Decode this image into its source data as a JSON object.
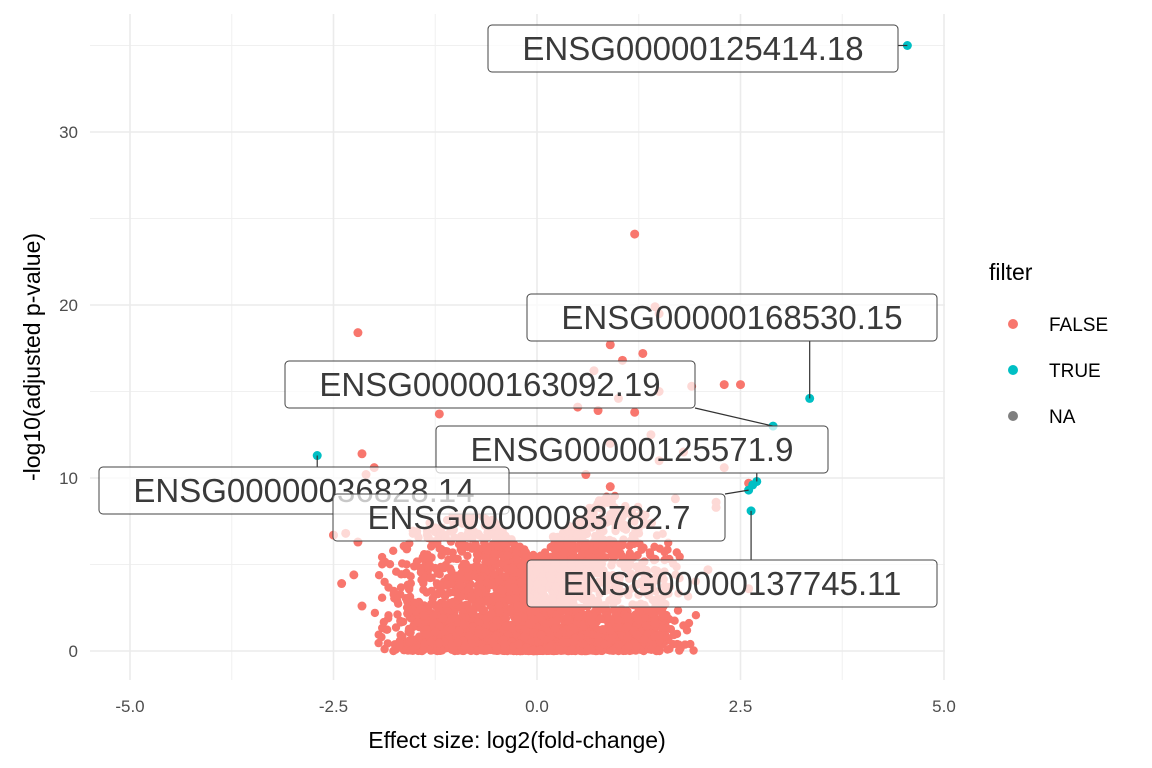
{
  "chart_data": {
    "type": "scatter",
    "title": "",
    "xlabel": "Effect size: log2(fold-change)",
    "ylabel": "-log10(adjusted p-value)",
    "xlim": [
      -5.2,
      5.0
    ],
    "ylim": [
      -1.6,
      36.5
    ],
    "x_ticks": [
      -5.0,
      -2.5,
      0.0,
      2.5,
      5.0
    ],
    "x_tick_labels": [
      "-5.0",
      "-2.5",
      "0.0",
      "2.5",
      "5.0"
    ],
    "y_ticks": [
      0,
      10,
      20,
      30
    ],
    "y_tick_labels": [
      "0",
      "10",
      "20",
      "30"
    ],
    "grid": true,
    "legend": {
      "title": "filter",
      "placement": "right",
      "entries": [
        {
          "label": "FALSE",
          "color": "#F8766D"
        },
        {
          "label": "TRUE",
          "color": "#00BFC4"
        },
        {
          "label": "NA",
          "color": "#7F7F7F"
        }
      ]
    },
    "series": [
      {
        "name": "FALSE",
        "color": "#F8766D",
        "points": [
          [
            1.2,
            24.1
          ],
          [
            -2.2,
            18.4
          ],
          [
            0.9,
            17.7
          ],
          [
            1.3,
            17.2
          ],
          [
            1.45,
            19.9
          ],
          [
            1.5,
            19.5
          ],
          [
            1.05,
            16.8
          ],
          [
            0.7,
            16.2
          ],
          [
            2.3,
            15.4
          ],
          [
            2.5,
            15.4
          ],
          [
            1.9,
            15.3
          ],
          [
            1.5,
            15.0
          ],
          [
            1.0,
            14.6
          ],
          [
            0.5,
            14.1
          ],
          [
            1.2,
            13.8
          ],
          [
            0.75,
            13.9
          ],
          [
            -1.2,
            13.7
          ],
          [
            1.4,
            12.5
          ],
          [
            0.9,
            12.0
          ],
          [
            1.8,
            11.5
          ],
          [
            2.3,
            10.6
          ],
          [
            -2.15,
            11.4
          ],
          [
            -2.1,
            10.2
          ],
          [
            -2.0,
            10.6
          ],
          [
            2.6,
            9.7
          ],
          [
            2.2,
            8.6
          ],
          [
            2.2,
            8.3
          ],
          [
            -2.5,
            6.7
          ],
          [
            -2.35,
            6.8
          ],
          [
            -2.2,
            6.3
          ],
          [
            -2.25,
            4.4
          ],
          [
            -2.4,
            3.9
          ],
          [
            2.1,
            4.7
          ],
          [
            2.6,
            3.6
          ],
          [
            -2.15,
            2.6
          ],
          [
            1.45,
            1.6
          ],
          [
            1.45,
            5.3
          ],
          [
            -0.5,
            6.5
          ],
          [
            0.4,
            7.2
          ],
          [
            0.2,
            6.6
          ],
          [
            1.1,
            8.0
          ],
          [
            1.7,
            8.8
          ],
          [
            1.5,
            11.0
          ],
          [
            -0.9,
            7.8
          ],
          [
            -1.6,
            5.9
          ],
          [
            -1.3,
            5.4
          ],
          [
            0.9,
            9.5
          ],
          [
            0.6,
            10.2
          ]
        ]
      },
      {
        "name": "TRUE",
        "color": "#00BFC4",
        "points": [
          [
            4.55,
            35.0
          ],
          [
            3.35,
            14.6
          ],
          [
            2.9,
            13.0
          ],
          [
            -2.7,
            11.3
          ],
          [
            2.7,
            9.8
          ],
          [
            2.65,
            9.6
          ],
          [
            2.6,
            9.3
          ],
          [
            2.63,
            8.1
          ]
        ]
      }
    ],
    "cloud": {
      "note_color": "#F8766D",
      "profile": [
        {
          "x": -2.0,
          "ymax": 5.5
        },
        {
          "x": -1.75,
          "ymax": 6.5
        },
        {
          "x": -1.5,
          "ymax": 7.0
        },
        {
          "x": -1.25,
          "ymax": 7.6
        },
        {
          "x": -1.0,
          "ymax": 8.0
        },
        {
          "x": -0.75,
          "ymax": 8.0
        },
        {
          "x": -0.5,
          "ymax": 7.5
        },
        {
          "x": -0.25,
          "ymax": 6.2
        },
        {
          "x": 0.0,
          "ymax": 5.5
        },
        {
          "x": 0.25,
          "ymax": 6.6
        },
        {
          "x": 0.5,
          "ymax": 7.6
        },
        {
          "x": 0.75,
          "ymax": 9.0
        },
        {
          "x": 1.0,
          "ymax": 9.2
        },
        {
          "x": 1.25,
          "ymax": 8.4
        },
        {
          "x": 1.5,
          "ymax": 7.0
        },
        {
          "x": 1.75,
          "ymax": 5.8
        },
        {
          "x": 2.0,
          "ymax": 4.5
        }
      ]
    },
    "annotations": [
      {
        "text": "ENSG00000125414.18",
        "point": [
          4.55,
          35.0
        ]
      },
      {
        "text": "ENSG00000168530.15",
        "point": [
          3.35,
          14.6
        ]
      },
      {
        "text": "ENSG00000163092.19",
        "point": [
          2.9,
          13.0
        ]
      },
      {
        "text": "ENSG00000125571.9",
        "point": [
          2.7,
          9.8
        ]
      },
      {
        "text": "ENSG00000036828.14",
        "point": [
          -2.7,
          11.3
        ]
      },
      {
        "text": "ENSG00000083782.7",
        "point": [
          2.6,
          9.3
        ]
      },
      {
        "text": "ENSG00000137745.11",
        "point": [
          2.63,
          8.1
        ]
      }
    ]
  }
}
